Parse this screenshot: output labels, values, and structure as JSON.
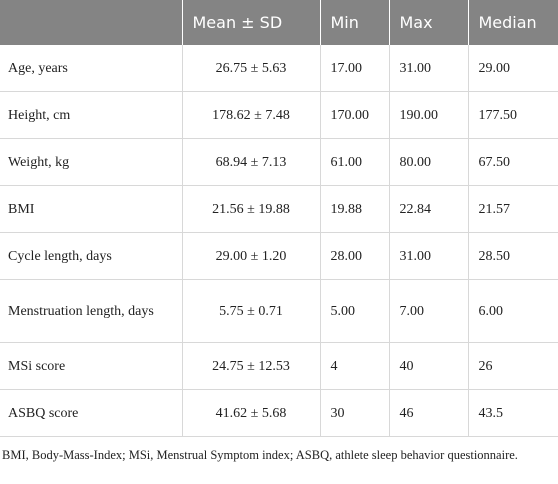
{
  "table": {
    "columns": [
      "Mean ± SD",
      "Min",
      "Max",
      "Median"
    ],
    "rows": [
      [
        "Age, years",
        "26.75 ± 5.63",
        "17.00",
        "31.00",
        "29.00"
      ],
      [
        "Height, cm",
        "178.62 ± 7.48",
        "170.00",
        "190.00",
        "177.50"
      ],
      [
        "Weight, kg",
        "68.94 ± 7.13",
        "61.00",
        "80.00",
        "67.50"
      ],
      [
        "BMI",
        "21.56 ± 19.88",
        "19.88",
        "22.84",
        "21.57"
      ],
      [
        "Cycle length, days",
        "29.00 ± 1.20",
        "28.00",
        "31.00",
        "28.50"
      ],
      [
        "Menstruation length, days",
        "5.75 ± 0.71",
        "5.00",
        "7.00",
        "6.00"
      ],
      [
        "MSi score",
        "24.75 ± 12.53",
        "4",
        "40",
        "26"
      ],
      [
        "ASBQ score",
        "41.62 ± 5.68",
        "30",
        "46",
        "43.5"
      ]
    ]
  },
  "footnote": "BMI, Body-Mass-Index; MSi, Menstrual Symptom index; ASBQ, athlete sleep behavior questionnaire."
}
